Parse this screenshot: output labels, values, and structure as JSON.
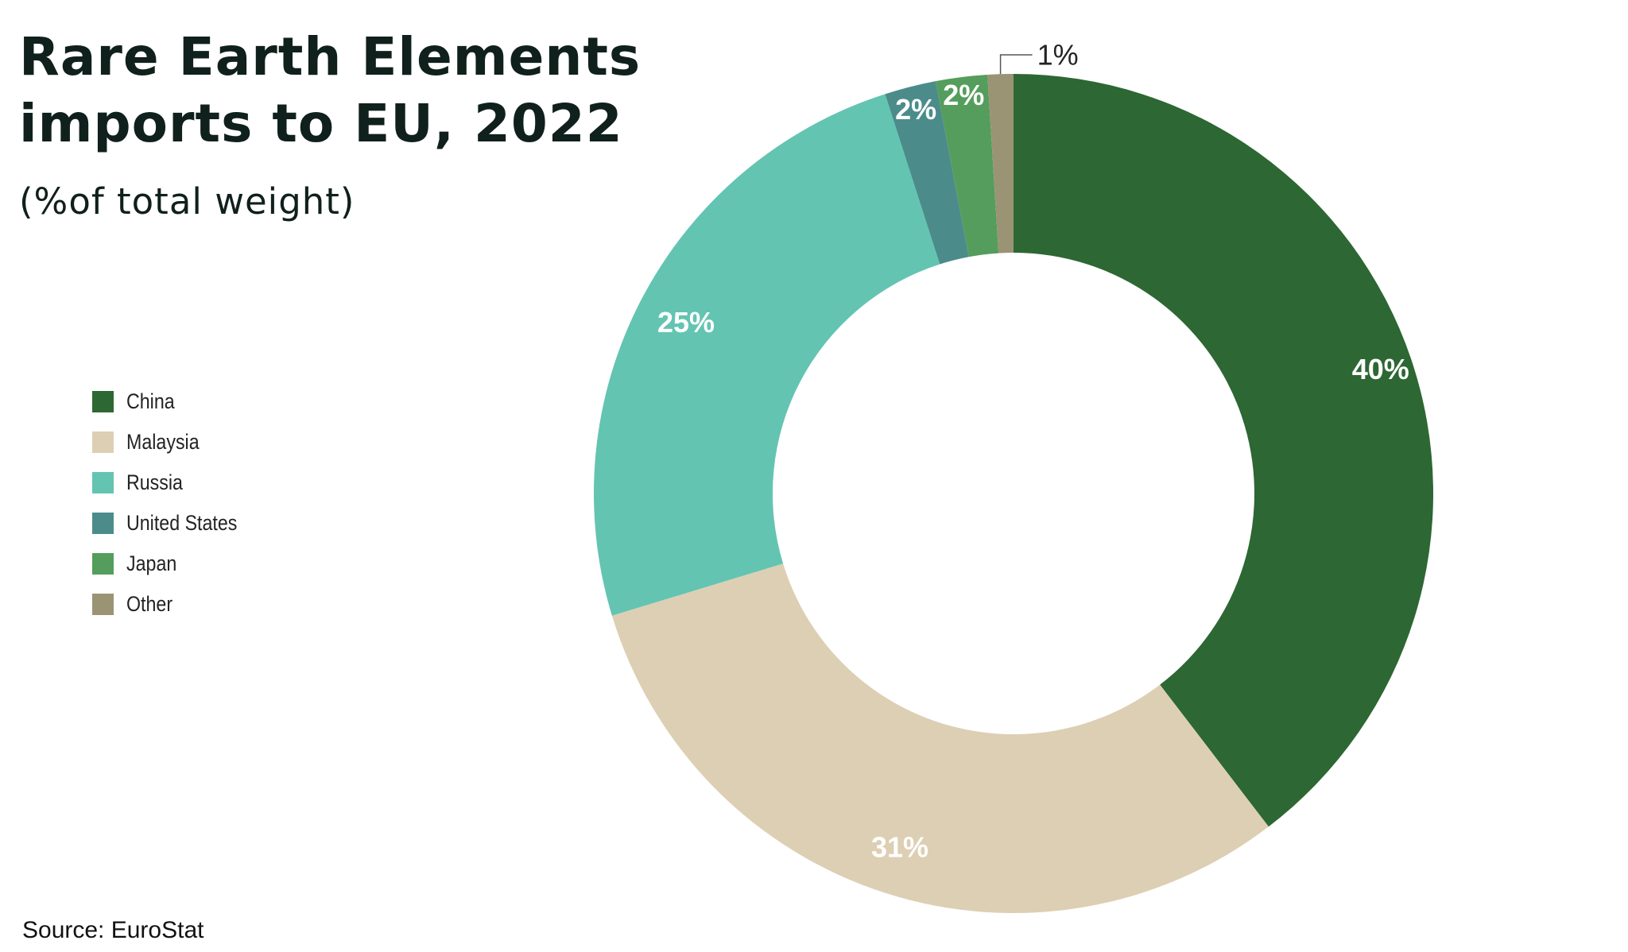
{
  "title_line1": "Rare Earth Elements",
  "title_line2": "imports to EU, 2022",
  "subtitle": "(%of total weight)",
  "source": "Source: EuroStat",
  "chart_data": {
    "type": "pie",
    "variant": "donut",
    "title": "Rare Earth Elements imports to EU, 2022",
    "subtitle": "(%of total weight)",
    "unit": "%",
    "categories": [
      "China",
      "Malaysia",
      "Russia",
      "United States",
      "Japan",
      "Other"
    ],
    "values": [
      40,
      31,
      25,
      2,
      2,
      1
    ],
    "labels": [
      "40%",
      "31%",
      "25%",
      "2%",
      "2%",
      "1%"
    ],
    "colors": [
      "#2d6733",
      "#ddcfb3",
      "#63c4b2",
      "#4b8c8b",
      "#559d5c",
      "#9b9474"
    ],
    "legend_position": "left"
  }
}
